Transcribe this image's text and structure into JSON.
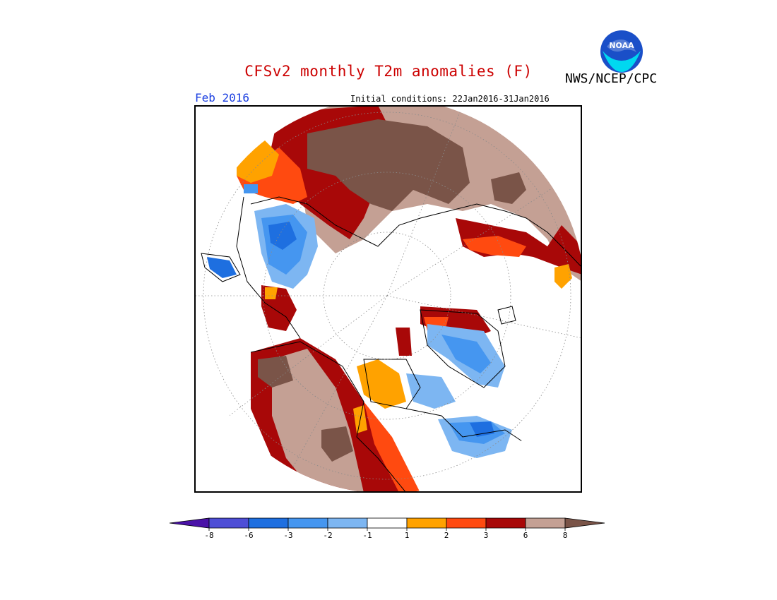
{
  "header": {
    "title": "CFSv2 monthly T2m anomalies (F)",
    "org": "NWS/NCEP/CPC",
    "logo_text": "NOAA",
    "month": "Feb 2016",
    "initial_conditions": "Initial conditions: 22Jan2016-31Jan2016"
  },
  "colorbar": {
    "bins": [
      {
        "color": "#4a12a8"
      },
      {
        "color": "#4e4ed6"
      },
      {
        "color": "#1e6fe0"
      },
      {
        "color": "#4596f0"
      },
      {
        "color": "#7db6f2"
      },
      {
        "color": "#ffffff"
      },
      {
        "color": "#ffa200"
      },
      {
        "color": "#ff4a10"
      },
      {
        "color": "#a80808"
      },
      {
        "color": "#c4a094"
      },
      {
        "color": "#7a5448"
      }
    ],
    "ticks": [
      "-8",
      "-6",
      "-3",
      "-2",
      "-1",
      "1",
      "2",
      "3",
      "6",
      "8"
    ]
  },
  "map": {
    "colors": {
      "brown": "#7a5448",
      "tan": "#c4a094",
      "darkred": "#a80808",
      "red": "#ff4a10",
      "orange": "#ffa200",
      "lightblue": "#7db6f2",
      "blue": "#4596f0",
      "midblue": "#1e6fe0"
    }
  }
}
